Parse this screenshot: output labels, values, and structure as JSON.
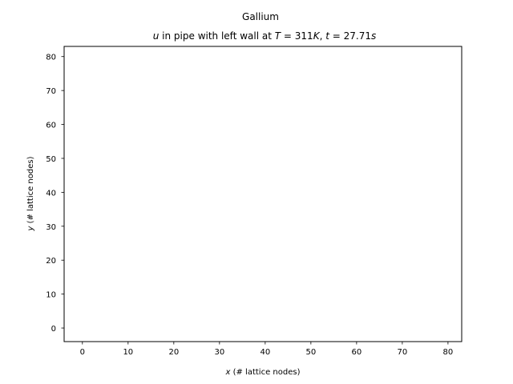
{
  "chart_data": {
    "type": "scatter",
    "title": "Gallium",
    "subtitle": {
      "var": "u",
      "middle": " in pipe with left wall at ",
      "T_sym": "T",
      "T_eq": " = 311",
      "T_unit": "K",
      "sep": ", ",
      "t_sym": "t",
      "t_eq": " = 27.71",
      "t_unit": "s"
    },
    "xlabel": {
      "var": "x",
      "text": " (# lattice nodes)"
    },
    "ylabel": {
      "var": "y",
      "text": " (# lattice nodes)"
    },
    "xlim": [
      -4,
      83
    ],
    "ylim": [
      -4,
      83
    ],
    "xticks": [
      0,
      10,
      20,
      30,
      40,
      50,
      60,
      70,
      80
    ],
    "yticks": [
      0,
      10,
      20,
      30,
      40,
      50,
      60,
      70,
      80
    ],
    "grid": false,
    "series": []
  }
}
